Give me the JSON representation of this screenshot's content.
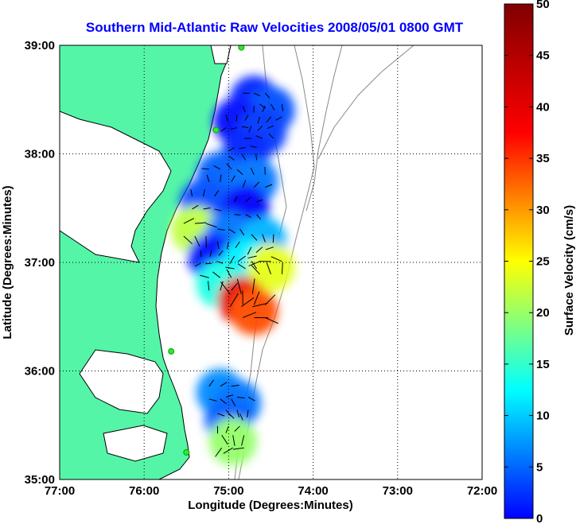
{
  "chart_data": {
    "type": "heatmap",
    "title": "Southern Mid-Atlantic Raw Velocities 2008/05/01 0800 GMT",
    "xlabel": "Longitude (Degrees:Minutes)",
    "ylabel": "Latitude (Degrees:Minutes)",
    "colorbar_label": "Surface Velocity (cm/s)",
    "xlim": [
      -77,
      -72
    ],
    "ylim": [
      35,
      39
    ],
    "clim": [
      0,
      50
    ],
    "x_ticks": [
      {
        "value": -77,
        "label": "77:00"
      },
      {
        "value": -76,
        "label": "76:00"
      },
      {
        "value": -75,
        "label": "75:00"
      },
      {
        "value": -74,
        "label": "74:00"
      },
      {
        "value": -73,
        "label": "73:00"
      },
      {
        "value": -72,
        "label": "72:00"
      }
    ],
    "y_ticks": [
      {
        "value": 35,
        "label": "35:00"
      },
      {
        "value": 36,
        "label": "36:00"
      },
      {
        "value": 37,
        "label": "37:00"
      },
      {
        "value": 38,
        "label": "38:00"
      },
      {
        "value": 39,
        "label": "39:00"
      }
    ],
    "colorbar_ticks": [
      {
        "value": 0,
        "label": "0"
      },
      {
        "value": 5,
        "label": "5"
      },
      {
        "value": 10,
        "label": "10"
      },
      {
        "value": 15,
        "label": "15"
      },
      {
        "value": 20,
        "label": "20"
      },
      {
        "value": 25,
        "label": "25"
      },
      {
        "value": 30,
        "label": "30"
      },
      {
        "value": 35,
        "label": "35"
      },
      {
        "value": 40,
        "label": "40"
      },
      {
        "value": 45,
        "label": "45"
      },
      {
        "value": 50,
        "label": "50"
      }
    ],
    "grid": "dotted",
    "colormap": "jet",
    "colors": {
      "land": "#55f5a8",
      "contour": "#8a8a8a",
      "coast": "#000000",
      "station": "#2ee82e",
      "title": "#0000ff"
    },
    "stations": [
      {
        "lon": -74.85,
        "lat": 38.98
      },
      {
        "lon": -75.15,
        "lat": 38.22
      },
      {
        "lon": -75.68,
        "lat": 36.18
      },
      {
        "lon": -75.5,
        "lat": 35.25
      }
    ],
    "velocity_cells": [
      {
        "lon": -74.7,
        "lat": 38.5,
        "speed": 8
      },
      {
        "lon": -74.5,
        "lat": 38.4,
        "speed": 10
      },
      {
        "lon": -74.9,
        "lat": 38.3,
        "speed": 7
      },
      {
        "lon": -74.6,
        "lat": 38.2,
        "speed": 9
      },
      {
        "lon": -74.8,
        "lat": 38.0,
        "speed": 8
      },
      {
        "lon": -75.1,
        "lat": 37.8,
        "speed": 11
      },
      {
        "lon": -74.7,
        "lat": 37.75,
        "speed": 12
      },
      {
        "lon": -75.3,
        "lat": 37.55,
        "speed": 10
      },
      {
        "lon": -74.8,
        "lat": 37.5,
        "speed": 6
      },
      {
        "lon": -75.4,
        "lat": 37.3,
        "speed": 28
      },
      {
        "lon": -75.0,
        "lat": 37.25,
        "speed": 12
      },
      {
        "lon": -74.6,
        "lat": 37.2,
        "speed": 15
      },
      {
        "lon": -75.2,
        "lat": 37.05,
        "speed": 7
      },
      {
        "lon": -74.8,
        "lat": 37.0,
        "speed": 18
      },
      {
        "lon": -74.5,
        "lat": 36.95,
        "speed": 30
      },
      {
        "lon": -75.1,
        "lat": 36.8,
        "speed": 20
      },
      {
        "lon": -74.85,
        "lat": 36.65,
        "speed": 45
      },
      {
        "lon": -74.7,
        "lat": 36.55,
        "speed": 40
      },
      {
        "lon": -75.1,
        "lat": 35.8,
        "speed": 13
      },
      {
        "lon": -74.9,
        "lat": 35.7,
        "speed": 12
      },
      {
        "lon": -75.0,
        "lat": 35.55,
        "speed": 11
      },
      {
        "lon": -74.95,
        "lat": 35.35,
        "speed": 26
      }
    ]
  }
}
